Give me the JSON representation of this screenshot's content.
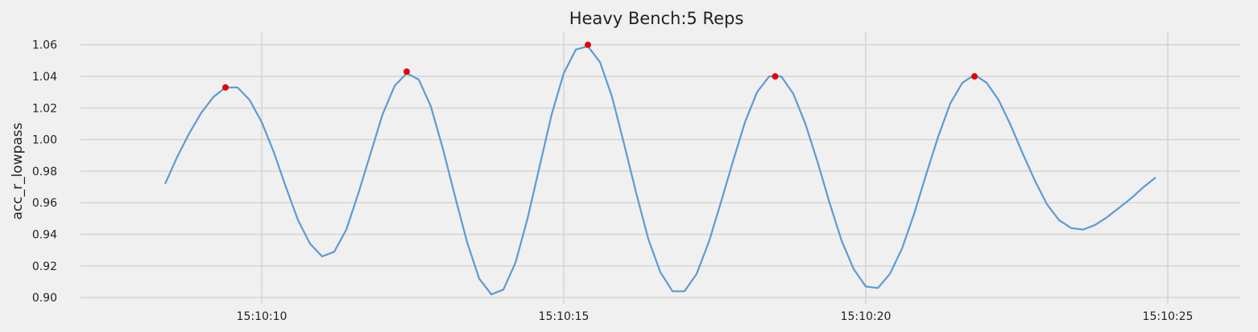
{
  "chart_data": {
    "type": "line",
    "title": "Heavy Bench:5 Reps",
    "xlabel": "",
    "ylabel": "acc_r_lowpass",
    "x_unit": "seconds after 15:10:00",
    "xlim": [
      7.0,
      26.2
    ],
    "ylim": [
      0.896,
      1.068
    ],
    "grid": true,
    "x_ticks": [
      {
        "value": 10,
        "label": "15:10:10"
      },
      {
        "value": 15,
        "label": "15:10:15"
      },
      {
        "value": 20,
        "label": "15:10:20"
      },
      {
        "value": 25,
        "label": "15:10:25"
      }
    ],
    "y_ticks": [
      {
        "value": 0.9,
        "label": "0.90"
      },
      {
        "value": 0.92,
        "label": "0.92"
      },
      {
        "value": 0.94,
        "label": "0.94"
      },
      {
        "value": 0.96,
        "label": "0.96"
      },
      {
        "value": 0.98,
        "label": "0.98"
      },
      {
        "value": 1.0,
        "label": "1.00"
      },
      {
        "value": 1.02,
        "label": "1.02"
      },
      {
        "value": 1.04,
        "label": "1.04"
      },
      {
        "value": 1.06,
        "label": "1.06"
      }
    ],
    "series": [
      {
        "color": "#5b9bd5",
        "x": [
          8.4,
          8.6,
          8.8,
          9.0,
          9.2,
          9.4,
          9.6,
          9.8,
          10.0,
          10.2,
          10.4,
          10.6,
          10.8,
          11.0,
          11.2,
          11.4,
          11.6,
          11.8,
          12.0,
          12.2,
          12.4,
          12.6,
          12.8,
          13.0,
          13.2,
          13.4,
          13.6,
          13.8,
          14.0,
          14.2,
          14.4,
          14.6,
          14.8,
          15.0,
          15.2,
          15.4,
          15.6,
          15.8,
          16.0,
          16.2,
          16.4,
          16.6,
          16.8,
          17.0,
          17.2,
          17.4,
          17.6,
          17.8,
          18.0,
          18.2,
          18.4,
          18.6,
          18.8,
          19.0,
          19.2,
          19.4,
          19.6,
          19.8,
          20.0,
          20.2,
          20.4,
          20.6,
          20.8,
          21.0,
          21.2,
          21.4,
          21.6,
          21.8,
          22.0,
          22.2,
          22.4,
          22.6,
          22.8,
          23.0,
          23.2,
          23.4,
          23.6,
          23.8,
          24.0,
          24.2,
          24.4,
          24.6,
          24.8
        ],
        "y": [
          0.972,
          0.989,
          1.004,
          1.017,
          1.027,
          1.033,
          1.033,
          1.025,
          1.011,
          0.992,
          0.97,
          0.949,
          0.934,
          0.926,
          0.929,
          0.943,
          0.966,
          0.991,
          1.016,
          1.034,
          1.042,
          1.038,
          1.021,
          0.994,
          0.964,
          0.935,
          0.912,
          0.902,
          0.905,
          0.922,
          0.95,
          0.983,
          1.016,
          1.042,
          1.057,
          1.059,
          1.049,
          1.027,
          0.997,
          0.966,
          0.937,
          0.916,
          0.904,
          0.904,
          0.915,
          0.935,
          0.96,
          0.986,
          1.011,
          1.03,
          1.04,
          1.04,
          1.029,
          1.01,
          0.986,
          0.96,
          0.936,
          0.918,
          0.907,
          0.906,
          0.915,
          0.931,
          0.953,
          0.978,
          1.002,
          1.023,
          1.036,
          1.041,
          1.036,
          1.025,
          1.009,
          0.991,
          0.974,
          0.959,
          0.949,
          0.944,
          0.943,
          0.946,
          0.951,
          0.957,
          0.963,
          0.97,
          0.976
        ]
      },
      {
        "name_hint": "peaks",
        "type": "scatter",
        "color": "#e8000b",
        "x": [
          9.4,
          12.4,
          15.4,
          18.5,
          21.8
        ],
        "y": [
          1.033,
          1.043,
          1.06,
          1.04,
          1.04
        ]
      }
    ]
  }
}
